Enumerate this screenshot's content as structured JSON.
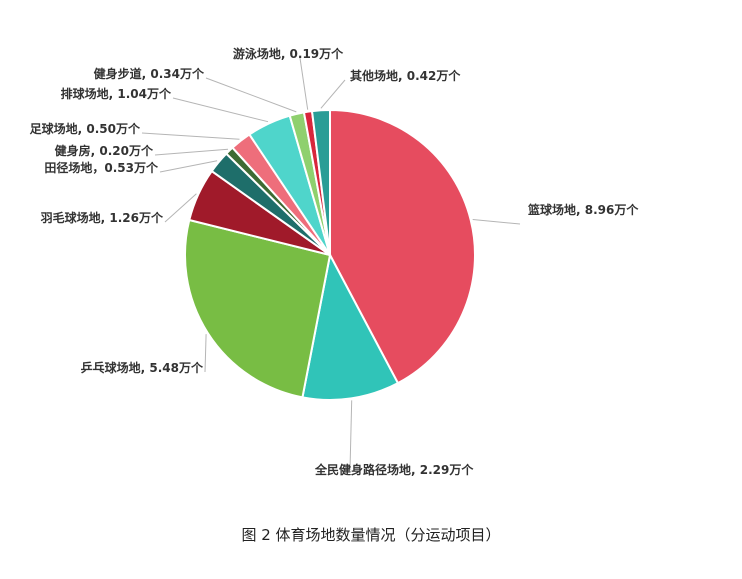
{
  "chart_data": {
    "type": "pie",
    "caption": "图 2  体育场地数量情况（分运动项目）",
    "unit": "万个",
    "slices": [
      {
        "name": "篮球场地",
        "value": 8.96,
        "label": "篮球场地, 8.96万个",
        "color": "#e64c5f"
      },
      {
        "name": "全民健身路径场地",
        "value": 2.29,
        "label": "全民健身路径场地, 2.29万个",
        "color": "#30c4b8"
      },
      {
        "name": "乒乓球场地",
        "value": 5.48,
        "label": "乒乓球场地, 5.48万个",
        "color": "#78bd44"
      },
      {
        "name": "羽毛球场地",
        "value": 1.26,
        "label": "羽毛球场地, 1.26万个",
        "color": "#a01a2a"
      },
      {
        "name": "田径场地",
        "value": 0.53,
        "label": "田径场地，0.53万个",
        "color": "#1e6e6a"
      },
      {
        "name": "健身房",
        "value": 0.2,
        "label": "健身房, 0.20万个",
        "color": "#3e6b33"
      },
      {
        "name": "足球场地",
        "value": 0.5,
        "label": "足球场地, 0.50万个",
        "color": "#ee6e7b"
      },
      {
        "name": "排球场地",
        "value": 1.04,
        "label": "排球场地, 1.04万个",
        "color": "#4fd5cb"
      },
      {
        "name": "健身步道",
        "value": 0.34,
        "label": "健身步道, 0.34万个",
        "color": "#8fd06e"
      },
      {
        "name": "游泳场地",
        "value": 0.19,
        "label": "游泳场地, 0.19万个",
        "color": "#d8263c"
      },
      {
        "name": "其他场地",
        "value": 0.42,
        "label": "其他场地, 0.42万个",
        "color": "#2a9d96"
      }
    ]
  }
}
